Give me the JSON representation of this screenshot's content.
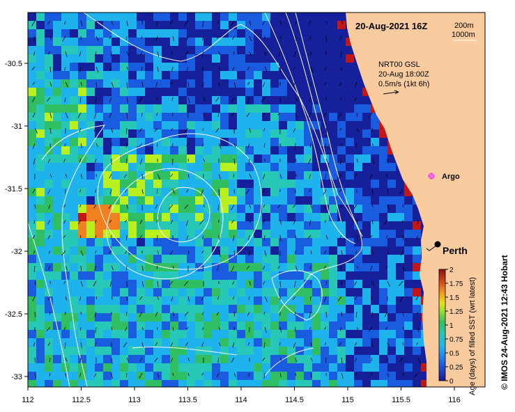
{
  "map": {
    "title": "20-Aug-2021 16Z",
    "depth_legend": {
      "contour_1": "200m",
      "contour_2": "1000m"
    },
    "current_info": {
      "line1": "NRT00 GSL",
      "line2": "20-Aug 18:00Z",
      "line3": "0.5m/s (1kt 6h)"
    },
    "places": {
      "argo": "Argo",
      "perth": "Perth"
    },
    "credit": "© IMOS 24-Aug-2021 12:43 Hobart",
    "x_ticks": [
      "112",
      "112.5",
      "113",
      "113.5",
      "114",
      "114.5",
      "115",
      "115.5",
      "116"
    ],
    "y_ticks": [
      "-30.5",
      "-31",
      "-31.5",
      "-32",
      "-32.5",
      "-33"
    ],
    "colorbar": {
      "label": "Age (days) of filled SST (wrt latest)",
      "ticks": [
        "2",
        "1.75",
        "1.5",
        "1.25",
        "1",
        "0.75",
        "0.5",
        "0.25",
        "0"
      ]
    },
    "colors": {
      "land": "#fbcba0",
      "deep_blue": "#15209a",
      "mid_blue": "#1a5ce0",
      "light_blue": "#1fb3ee",
      "aqua": "#27c8b8",
      "green": "#2fbf62",
      "yellow_green": "#b8f020",
      "orange": "#f08020",
      "red": "#c01818",
      "argo": "#ff30ff"
    }
  }
}
